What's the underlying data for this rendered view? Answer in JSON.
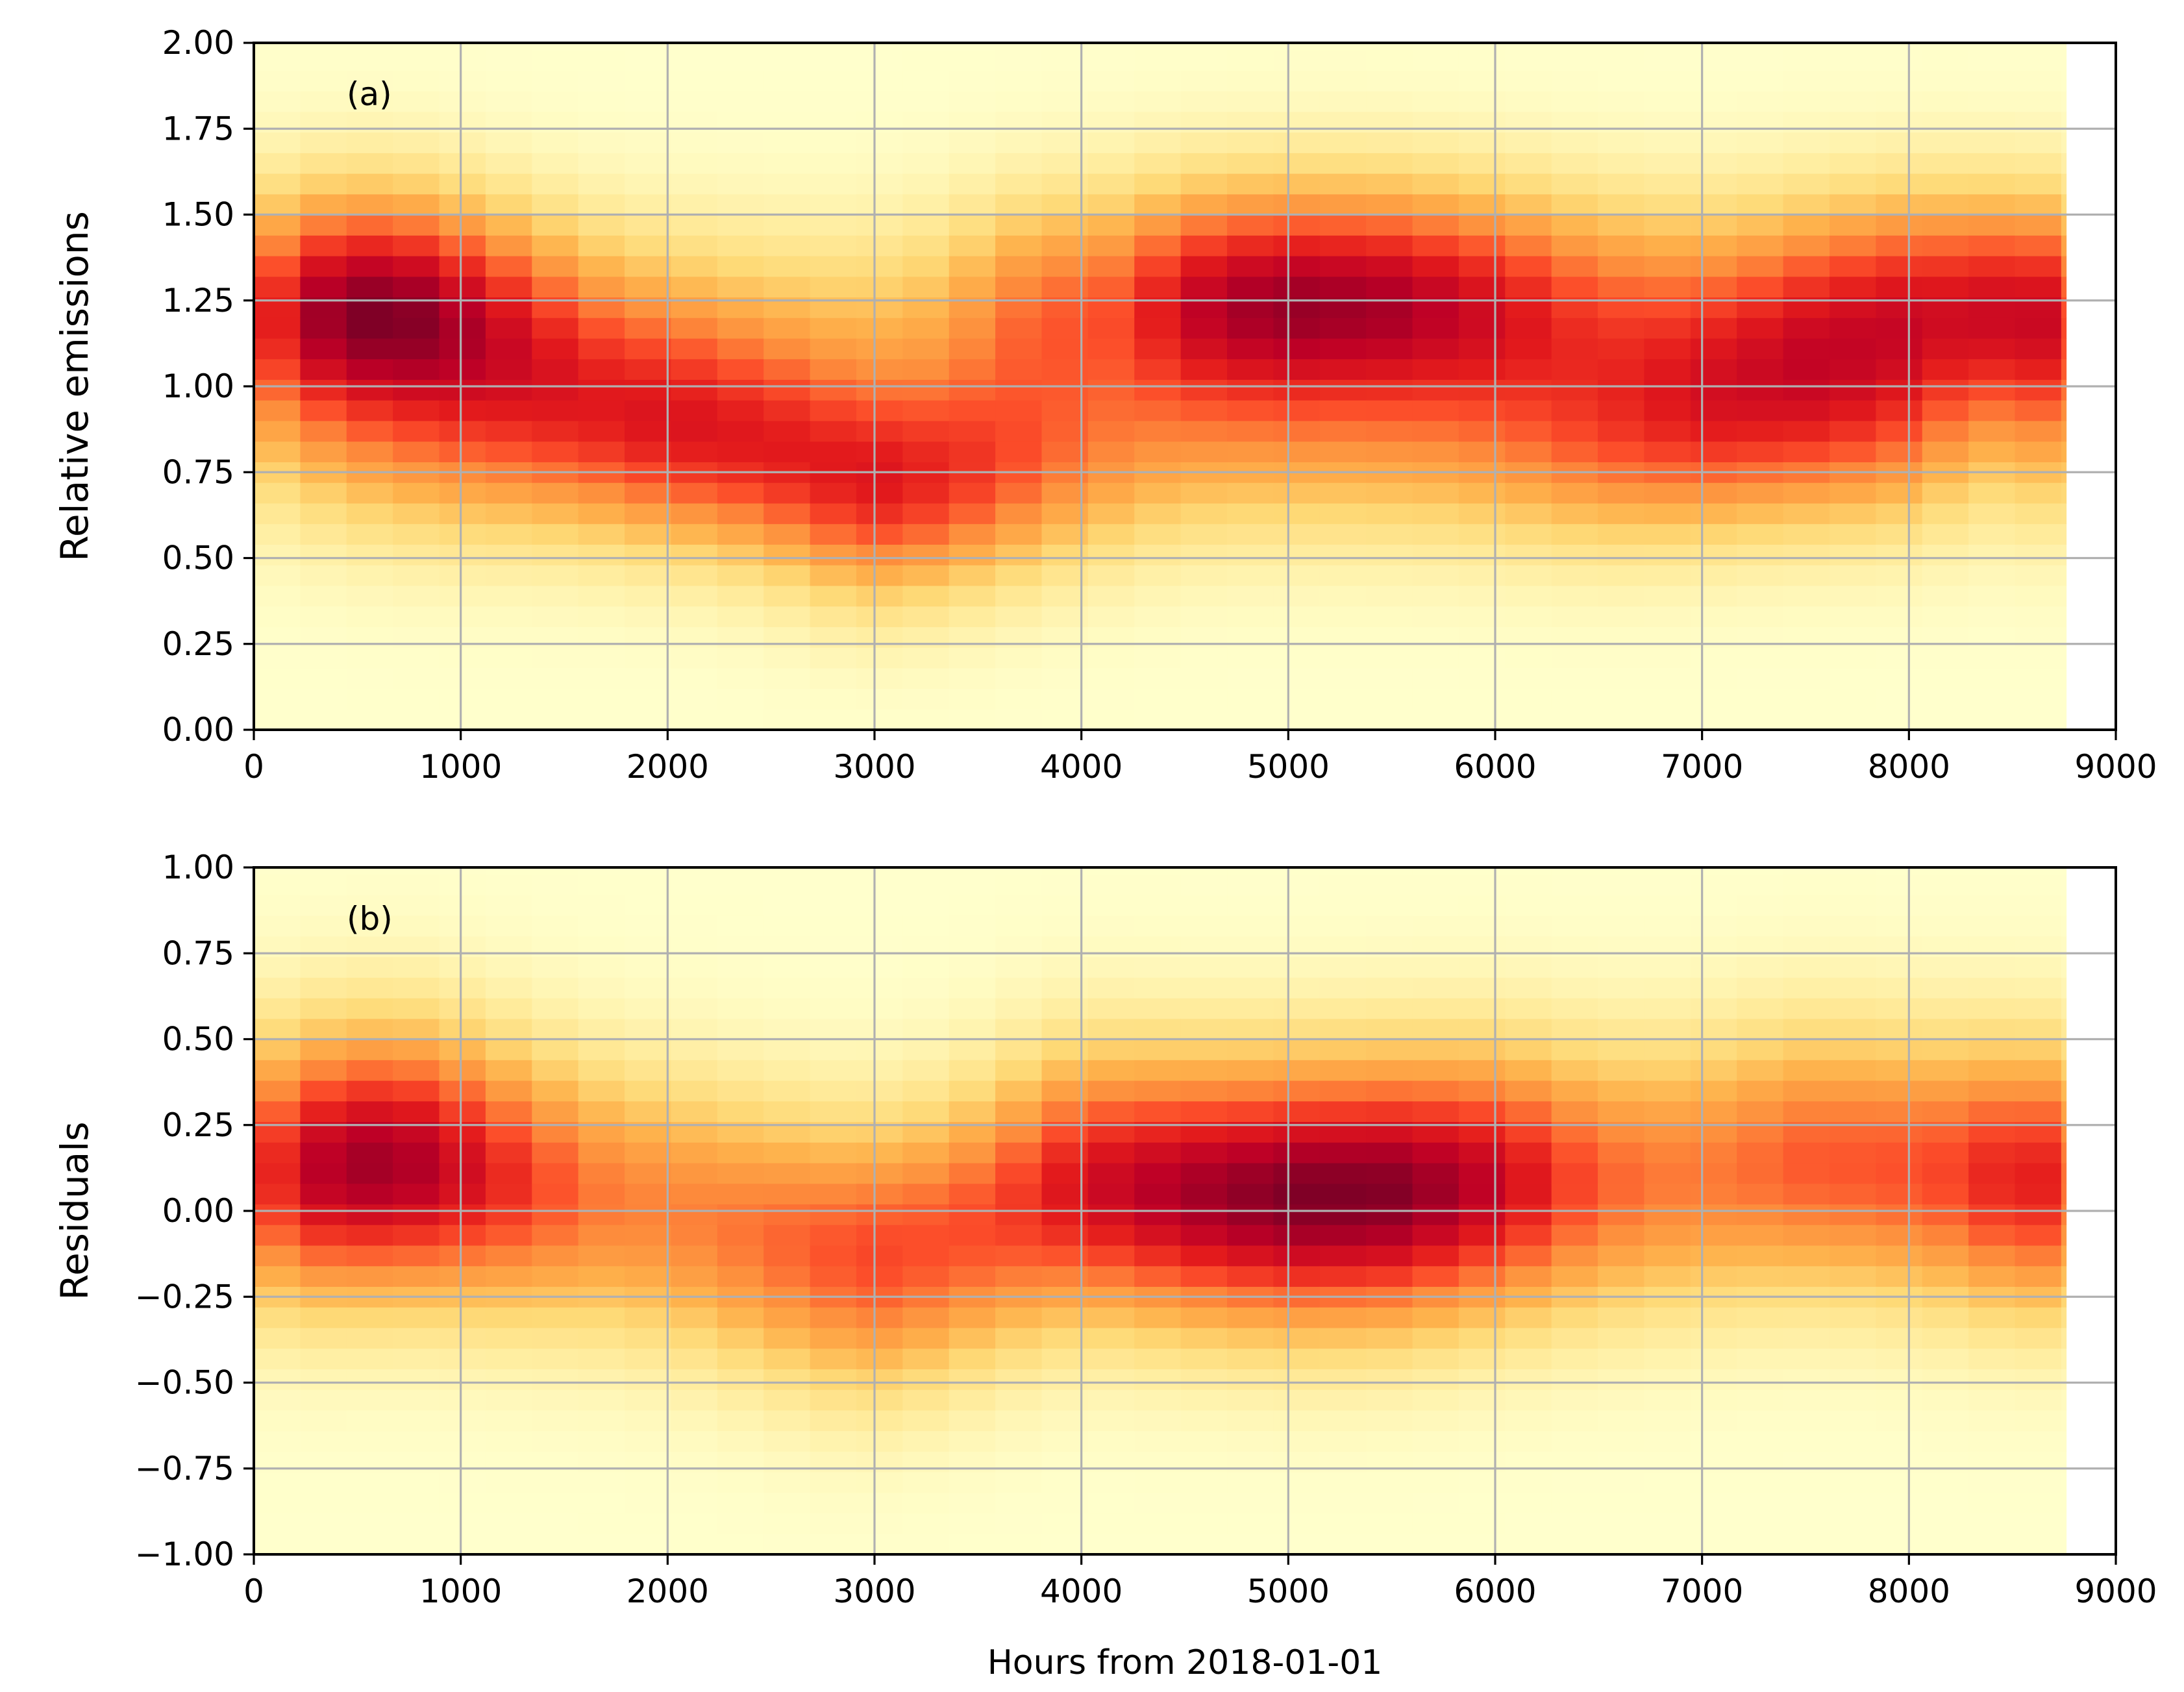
{
  "figure": {
    "xlabel": "Hours from 2018-01-01",
    "colormap": [
      "#ffffcc",
      "#ffeda0",
      "#fed976",
      "#feb24c",
      "#fd8d3c",
      "#fc4e2a",
      "#e31a1c",
      "#bd0026",
      "#800026"
    ],
    "grid_color": "#b0b0b0"
  },
  "chart_data": [
    {
      "type": "heatmap",
      "panel_label": "(a)",
      "title": "",
      "xlabel": "",
      "ylabel": "Relative emissions",
      "xlim": [
        0,
        9000
      ],
      "ylim": [
        0.0,
        2.0
      ],
      "x_ticks": [
        0,
        1000,
        2000,
        3000,
        4000,
        5000,
        6000,
        7000,
        8000,
        9000
      ],
      "x_tick_labels": [
        "0",
        "1000",
        "2000",
        "3000",
        "4000",
        "5000",
        "6000",
        "7000",
        "8000",
        "9000"
      ],
      "y_ticks": [
        0.0,
        0.25,
        0.5,
        0.75,
        1.0,
        1.25,
        1.5,
        1.75,
        2.0
      ],
      "y_tick_labels": [
        "0.00",
        "0.25",
        "0.50",
        "0.75",
        "1.00",
        "1.25",
        "1.50",
        "1.75",
        "2.00"
      ],
      "grid": true,
      "x_bin_width": 224,
      "x_data_max": 8760,
      "y_bin_width": 0.06,
      "ridges": [
        {
          "x": 0,
          "y": 1.22,
          "w": 0.3
        },
        {
          "x": 300,
          "y": 1.24,
          "w": 0.75
        },
        {
          "x": 700,
          "y": 1.24,
          "w": 0.85
        },
        {
          "x": 1100,
          "y": 1.21,
          "w": 0.6
        },
        {
          "x": 1500,
          "y": 1.18,
          "w": 0.4
        },
        {
          "x": 2000,
          "y": 1.17,
          "w": 0.3
        },
        {
          "x": 2500,
          "y": 1.16,
          "w": 0.25
        },
        {
          "x": 3000,
          "y": 1.16,
          "w": 0.25
        },
        {
          "x": 3500,
          "y": 1.2,
          "w": 0.3
        },
        {
          "x": 3900,
          "y": 1.24,
          "w": 0.55
        },
        {
          "x": 4500,
          "y": 1.26,
          "w": 0.85
        },
        {
          "x": 5000,
          "y": 1.26,
          "w": 0.95
        },
        {
          "x": 5500,
          "y": 1.26,
          "w": 0.9
        },
        {
          "x": 6000,
          "y": 1.25,
          "w": 0.75
        },
        {
          "x": 6500,
          "y": 1.24,
          "w": 0.5
        },
        {
          "x": 7000,
          "y": 1.22,
          "w": 0.45
        },
        {
          "x": 7500,
          "y": 1.23,
          "w": 0.6
        },
        {
          "x": 8000,
          "y": 1.25,
          "w": 0.75
        },
        {
          "x": 8500,
          "y": 1.24,
          "w": 0.65
        },
        {
          "x": 8760,
          "y": 1.22,
          "w": 0.5
        },
        {
          "x": 0,
          "y": 0.9,
          "w": 0.2
        },
        {
          "x": 500,
          "y": 0.85,
          "w": 0.35
        },
        {
          "x": 1000,
          "y": 0.85,
          "w": 0.45
        },
        {
          "x": 1500,
          "y": 0.87,
          "w": 0.55
        },
        {
          "x": 2000,
          "y": 0.85,
          "w": 0.7
        },
        {
          "x": 2500,
          "y": 0.8,
          "w": 0.7
        },
        {
          "x": 3000,
          "y": 0.7,
          "w": 0.8
        },
        {
          "x": 3500,
          "y": 0.75,
          "w": 0.65
        },
        {
          "x": 4000,
          "y": 0.8,
          "w": 0.45
        },
        {
          "x": 4500,
          "y": 0.85,
          "w": 0.35
        },
        {
          "x": 5000,
          "y": 0.85,
          "w": 0.35
        },
        {
          "x": 5500,
          "y": 0.85,
          "w": 0.35
        },
        {
          "x": 6000,
          "y": 0.85,
          "w": 0.4
        },
        {
          "x": 6500,
          "y": 0.85,
          "w": 0.55
        },
        {
          "x": 7000,
          "y": 0.88,
          "w": 0.65
        },
        {
          "x": 7500,
          "y": 0.9,
          "w": 0.6
        },
        {
          "x": 8000,
          "y": 0.88,
          "w": 0.5
        },
        {
          "x": 8760,
          "y": 0.87,
          "w": 0.4
        }
      ],
      "ridge_sigma": 0.22,
      "x_sigma": 280
    },
    {
      "type": "heatmap",
      "panel_label": "(b)",
      "title": "",
      "xlabel": "Hours from 2018-01-01",
      "ylabel": "Residuals",
      "xlim": [
        0,
        9000
      ],
      "ylim": [
        -1.0,
        1.0
      ],
      "x_ticks": [
        0,
        1000,
        2000,
        3000,
        4000,
        5000,
        6000,
        7000,
        8000,
        9000
      ],
      "x_tick_labels": [
        "0",
        "1000",
        "2000",
        "3000",
        "4000",
        "5000",
        "6000",
        "7000",
        "8000",
        "9000"
      ],
      "y_ticks": [
        -1.0,
        -0.75,
        -0.5,
        -0.25,
        0.0,
        0.25,
        0.5,
        0.75,
        1.0
      ],
      "y_tick_labels": [
        "−1.00",
        "−0.75",
        "−0.50",
        "−0.25",
        "0.00",
        "0.25",
        "0.50",
        "0.75",
        "1.00"
      ],
      "grid": true,
      "x_bin_width": 224,
      "x_data_max": 8760,
      "y_bin_width": 0.06,
      "ridges": [
        {
          "x": 0,
          "y": 0.1,
          "w": 0.35
        },
        {
          "x": 300,
          "y": 0.12,
          "w": 0.65
        },
        {
          "x": 700,
          "y": 0.15,
          "w": 0.75
        },
        {
          "x": 1100,
          "y": 0.1,
          "w": 0.55
        },
        {
          "x": 1500,
          "y": 0.05,
          "w": 0.45
        },
        {
          "x": 2000,
          "y": 0.0,
          "w": 0.45
        },
        {
          "x": 2500,
          "y": -0.08,
          "w": 0.5
        },
        {
          "x": 3000,
          "y": -0.15,
          "w": 0.6
        },
        {
          "x": 3500,
          "y": -0.05,
          "w": 0.55
        },
        {
          "x": 4000,
          "y": 0.08,
          "w": 0.75
        },
        {
          "x": 4500,
          "y": 0.05,
          "w": 0.85
        },
        {
          "x": 5000,
          "y": 0.04,
          "w": 0.95
        },
        {
          "x": 5500,
          "y": 0.05,
          "w": 0.95
        },
        {
          "x": 6000,
          "y": 0.08,
          "w": 0.8
        },
        {
          "x": 6500,
          "y": 0.08,
          "w": 0.5
        },
        {
          "x": 7000,
          "y": 0.1,
          "w": 0.45
        },
        {
          "x": 7500,
          "y": 0.15,
          "w": 0.55
        },
        {
          "x": 8000,
          "y": 0.12,
          "w": 0.55
        },
        {
          "x": 8500,
          "y": 0.1,
          "w": 0.55
        },
        {
          "x": 8760,
          "y": 0.08,
          "w": 0.45
        }
      ],
      "ridge_sigma": 0.26,
      "x_sigma": 280
    }
  ]
}
